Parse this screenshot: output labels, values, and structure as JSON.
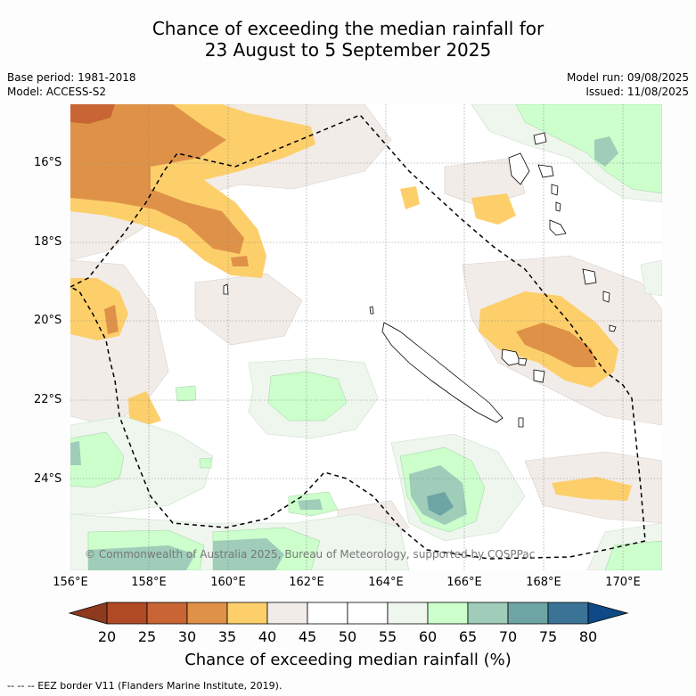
{
  "title": {
    "line1": "Chance of exceeding the median rainfall for",
    "line2": "23 August to 5 September 2025"
  },
  "meta": {
    "base_period": "Base period: 1981-2018",
    "model": "Model: ACCESS-S2",
    "model_run": "Model run: 09/08/2025",
    "issued": "Issued: 11/08/2025"
  },
  "map": {
    "lon_range": [
      156,
      171
    ],
    "lat_range": [
      -26.4,
      -14.6
    ],
    "lat_ticks": [
      "16°S",
      "18°S",
      "20°S",
      "22°S",
      "24°S"
    ],
    "lon_ticks": [
      "156°E",
      "158°E",
      "160°E",
      "162°E",
      "164°E",
      "166°E",
      "168°E",
      "170°E"
    ],
    "copyright": "© Commonwealth of Australia 2025, Bureau of Meteorology, supported by COSPPac",
    "eez_border_style": "dashed"
  },
  "colorbar": {
    "ticks": [
      "20",
      "25",
      "30",
      "35",
      "40",
      "45",
      "50",
      "55",
      "60",
      "65",
      "70",
      "75",
      "80"
    ],
    "colors": [
      "#b04a25",
      "#c96434",
      "#df9247",
      "#fdcf6b",
      "#f2ece8",
      "#ffffff",
      "#ffffff",
      "#eef6ee",
      "#ccffcc",
      "#9fcdb9",
      "#6da5a4",
      "#3a7396"
    ],
    "under_color": "#8e3a1e",
    "over_color": "#0d4a86",
    "label": "Chance of exceeding median rainfall (%)"
  },
  "eez_note": "--  --  -- EEZ border V11 (Flanders Marine Institute, 2019)."
}
